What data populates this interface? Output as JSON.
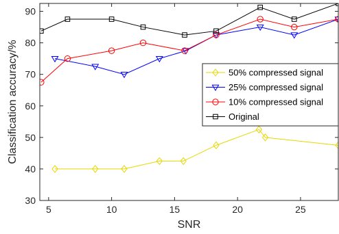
{
  "chart_data": {
    "type": "line",
    "title": "",
    "xlabel": "SNR",
    "ylabel": "Classification accuracy/%",
    "xlim": [
      4.3,
      28
    ],
    "ylim": [
      30,
      92.5
    ],
    "xticks": [
      5,
      10,
      15,
      20,
      25
    ],
    "yticks": [
      30,
      40,
      50,
      60,
      70,
      80,
      90
    ],
    "grid": false,
    "legend_position": "right",
    "series": [
      {
        "name": "50% compressed signal",
        "color": "#e6d800",
        "marker": "diamond",
        "x": [
          5.5,
          8.7,
          11,
          13.8,
          15.7,
          18.3,
          21.7,
          22.2,
          28
        ],
        "y": [
          40,
          40,
          40,
          42.5,
          42.5,
          47.5,
          52.5,
          50,
          47.5
        ]
      },
      {
        "name": "25% compressed signal",
        "color": "#0000ff",
        "marker": "triangle-down",
        "x": [
          5.5,
          8.7,
          11,
          13.8,
          15.9,
          18.3,
          21.8,
          24.5,
          28
        ],
        "y": [
          75,
          72.5,
          70,
          75,
          77.5,
          82.5,
          85,
          82.5,
          87.5
        ]
      },
      {
        "name": "10% compressed signal",
        "color": "#ff0000",
        "marker": "circle",
        "x": [
          4.4,
          6.5,
          10,
          12.5,
          15.8,
          18.3,
          21.8,
          24.5,
          28
        ],
        "y": [
          67.5,
          75,
          77.5,
          80,
          77.5,
          82.5,
          87.5,
          85,
          87.5
        ]
      },
      {
        "name": "Original",
        "color": "#000000",
        "marker": "square",
        "x": [
          4.4,
          6.5,
          10,
          12.5,
          15.8,
          18.3,
          21.8,
          24.5,
          28
        ],
        "y": [
          83.75,
          87.5,
          87.5,
          85,
          82.5,
          83.75,
          91.25,
          87.5,
          92.5
        ]
      }
    ]
  }
}
